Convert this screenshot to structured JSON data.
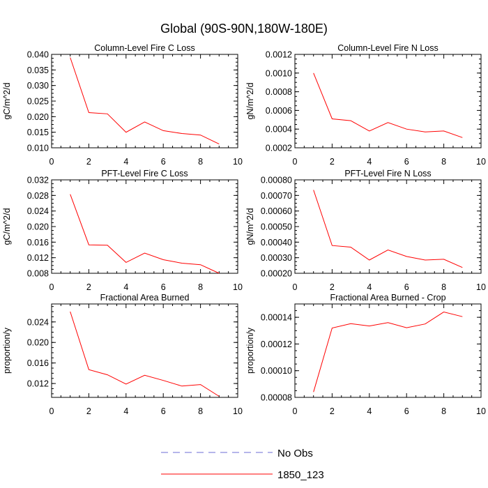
{
  "page_title": "Global (90S-90N,180W-180E)",
  "legend": [
    {
      "label": "No Obs",
      "color": "#6b6bd6",
      "dashed": true
    },
    {
      "label": "1850_123",
      "color": "#ff0000",
      "dashed": false
    }
  ],
  "chart_data": [
    {
      "type": "line",
      "title": "Column-Level Fire C Loss",
      "ylabel": "gC/m^2/d",
      "xlim": [
        0,
        10
      ],
      "ylim": [
        0.01,
        0.04
      ],
      "xticks": [
        0,
        2,
        4,
        6,
        8,
        10
      ],
      "xtick_labels": [
        "0",
        "2",
        "4",
        "6",
        "8",
        "10"
      ],
      "yticks": [
        0.01,
        0.015,
        0.02,
        0.025,
        0.03,
        0.035,
        0.04
      ],
      "ytick_labels": [
        "0.010",
        "0.015",
        "0.020",
        "0.025",
        "0.030",
        "0.035",
        "0.040"
      ],
      "series": [
        {
          "name": "1850_123",
          "color": "#ff0000",
          "x": [
            1,
            2,
            3,
            4,
            5,
            6,
            7,
            8,
            9
          ],
          "y": [
            0.039,
            0.0213,
            0.0209,
            0.015,
            0.0183,
            0.0155,
            0.0146,
            0.0141,
            0.0112
          ]
        }
      ]
    },
    {
      "type": "line",
      "title": "Column-Level Fire N Loss",
      "ylabel": "gN/m^2/d",
      "xlim": [
        0,
        10
      ],
      "ylim": [
        0.0002,
        0.0012
      ],
      "xticks": [
        0,
        2,
        4,
        6,
        8,
        10
      ],
      "xtick_labels": [
        "0",
        "2",
        "4",
        "6",
        "8",
        "10"
      ],
      "yticks": [
        0.0002,
        0.0004,
        0.0006,
        0.0008,
        0.001,
        0.0012
      ],
      "ytick_labels": [
        "0.0002",
        "0.0004",
        "0.0006",
        "0.0008",
        "0.0010",
        "0.0012"
      ],
      "series": [
        {
          "name": "1850_123",
          "color": "#ff0000",
          "x": [
            1,
            2,
            3,
            4,
            5,
            6,
            7,
            8,
            9
          ],
          "y": [
            0.001,
            0.00051,
            0.00049,
            0.00038,
            0.00047,
            0.0004,
            0.00037,
            0.00038,
            0.00031
          ]
        }
      ]
    },
    {
      "type": "line",
      "title": "PFT-Level Fire C Loss",
      "ylabel": "gC/m^2/d",
      "xlim": [
        0,
        10
      ],
      "ylim": [
        0.008,
        0.032
      ],
      "xticks": [
        0,
        2,
        4,
        6,
        8,
        10
      ],
      "xtick_labels": [
        "0",
        "2",
        "4",
        "6",
        "8",
        "10"
      ],
      "yticks": [
        0.008,
        0.012,
        0.016,
        0.02,
        0.024,
        0.028,
        0.032
      ],
      "ytick_labels": [
        "0.008",
        "0.012",
        "0.016",
        "0.020",
        "0.024",
        "0.028",
        "0.032"
      ],
      "series": [
        {
          "name": "1850_123",
          "color": "#ff0000",
          "x": [
            1,
            2,
            3,
            4,
            5,
            6,
            7,
            8,
            9
          ],
          "y": [
            0.0283,
            0.0153,
            0.0152,
            0.0108,
            0.0132,
            0.0115,
            0.0106,
            0.0102,
            0.008
          ]
        }
      ]
    },
    {
      "type": "line",
      "title": "PFT-Level Fire N Loss",
      "ylabel": "gN/m^2/d",
      "xlim": [
        0,
        10
      ],
      "ylim": [
        0.0002,
        0.0008
      ],
      "xticks": [
        0,
        2,
        4,
        6,
        8,
        10
      ],
      "xtick_labels": [
        "0",
        "2",
        "4",
        "6",
        "8",
        "10"
      ],
      "yticks": [
        0.0002,
        0.0003,
        0.0004,
        0.0005,
        0.0006,
        0.0007,
        0.0008
      ],
      "ytick_labels": [
        "0.00020",
        "0.00030",
        "0.00040",
        "0.00050",
        "0.00060",
        "0.00070",
        "0.00080"
      ],
      "series": [
        {
          "name": "1850_123",
          "color": "#ff0000",
          "x": [
            1,
            2,
            3,
            4,
            5,
            6,
            7,
            8,
            9
          ],
          "y": [
            0.000735,
            0.000378,
            0.000368,
            0.000285,
            0.00035,
            0.000308,
            0.000285,
            0.00029,
            0.000237
          ]
        }
      ]
    },
    {
      "type": "line",
      "title": "Fractional Area Burned",
      "ylabel": "proportion/y",
      "xlim": [
        0,
        10
      ],
      "ylim": [
        0.0093,
        0.0275
      ],
      "xticks": [
        0,
        2,
        4,
        6,
        8,
        10
      ],
      "xtick_labels": [
        "0",
        "2",
        "4",
        "6",
        "8",
        "10"
      ],
      "yticks": [
        0.012,
        0.016,
        0.02,
        0.024
      ],
      "ytick_labels": [
        "0.012",
        "0.016",
        "0.020",
        "0.024"
      ],
      "series": [
        {
          "name": "1850_123",
          "color": "#ff0000",
          "x": [
            1,
            2,
            3,
            4,
            5,
            6,
            7,
            8,
            9
          ],
          "y": [
            0.026,
            0.0147,
            0.0137,
            0.0119,
            0.0136,
            0.0126,
            0.0115,
            0.0118,
            0.0095
          ]
        }
      ]
    },
    {
      "type": "line",
      "title": "Fractional Area Burned - Crop",
      "ylabel": "proportion/y",
      "xlim": [
        0,
        10
      ],
      "ylim": [
        8e-05,
        0.00015
      ],
      "xticks": [
        0,
        2,
        4,
        6,
        8,
        10
      ],
      "xtick_labels": [
        "0",
        "2",
        "4",
        "6",
        "8",
        "10"
      ],
      "yticks": [
        8e-05,
        0.0001,
        0.00012,
        0.00014
      ],
      "ytick_labels": [
        "0.00008",
        "0.00010",
        "0.00012",
        "0.00014"
      ],
      "series": [
        {
          "name": "1850_123",
          "color": "#ff0000",
          "x": [
            1,
            2,
            3,
            4,
            5,
            6,
            7,
            8,
            9
          ],
          "y": [
            8.4e-05,
            0.000132,
            0.0001352,
            0.0001335,
            0.000136,
            0.0001322,
            0.000135,
            0.000144,
            0.0001405
          ]
        }
      ]
    }
  ]
}
